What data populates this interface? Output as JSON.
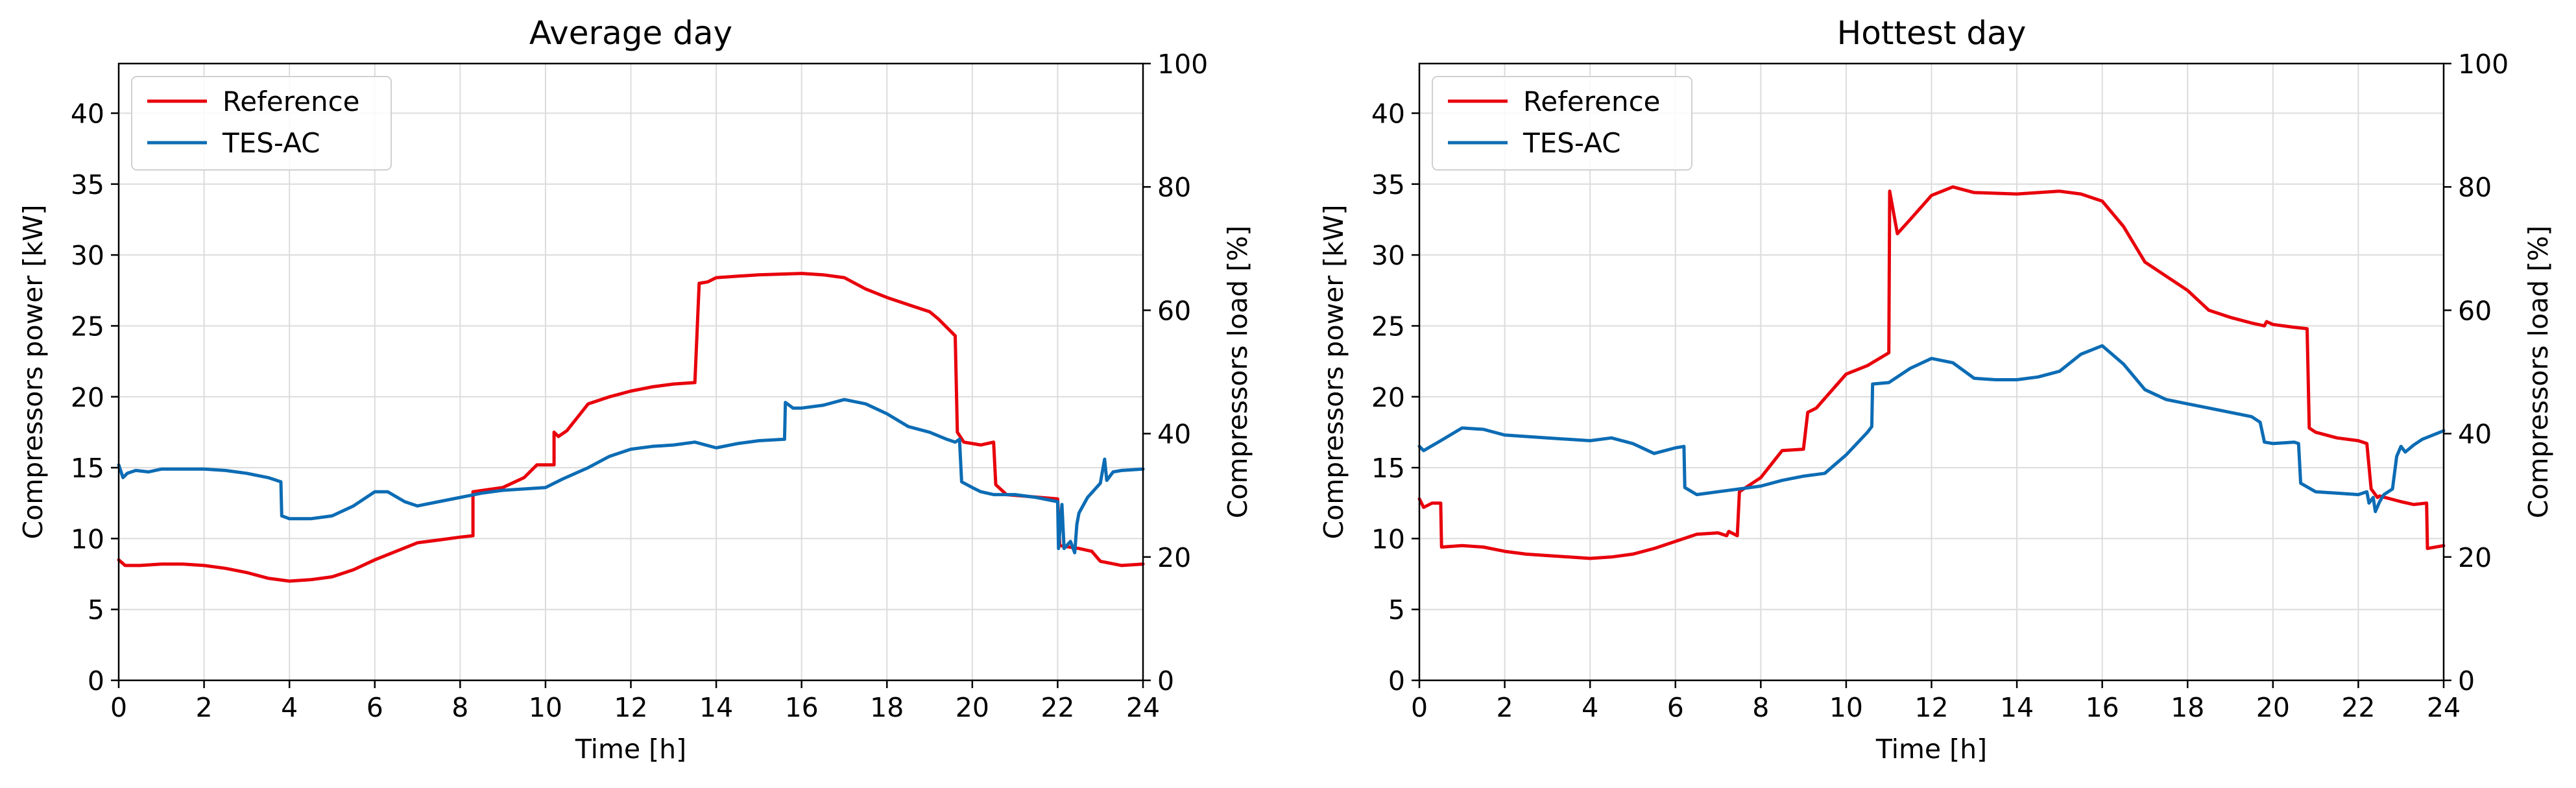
{
  "chart_data": [
    {
      "type": "line",
      "title": "Average day",
      "xlabel": "Time [h]",
      "ylabel": "Compressors power [kW]",
      "y2label": "Compressors load [%]",
      "xlim": [
        0,
        24
      ],
      "ylim": [
        0,
        43.5
      ],
      "y2lim": [
        0,
        100
      ],
      "xticks": [
        0,
        2,
        4,
        6,
        8,
        10,
        12,
        14,
        16,
        18,
        20,
        22,
        24
      ],
      "yticks": [
        0,
        5,
        10,
        15,
        20,
        25,
        30,
        35,
        40
      ],
      "y2ticks": [
        0,
        20,
        40,
        60,
        80,
        100
      ],
      "legend": "top-left",
      "grid": true,
      "series": [
        {
          "name": "Reference",
          "color": "#e8000b",
          "x": [
            0,
            0.15,
            0.5,
            1,
            1.5,
            2,
            2.5,
            3,
            3.5,
            4,
            4.5,
            5,
            5.5,
            6,
            6.5,
            7,
            7.5,
            8,
            8.3,
            8.3,
            9,
            9.5,
            9.8,
            10.2,
            10.2,
            10.3,
            10.5,
            11,
            11.5,
            12,
            12.5,
            13,
            13.5,
            13.6,
            13.8,
            14,
            15,
            16,
            16.5,
            17,
            17.5,
            18,
            18.5,
            19,
            19.2,
            19.6,
            19.65,
            19.8,
            20,
            20.2,
            20.5,
            20.55,
            20.8,
            22.0,
            22.05,
            22.5,
            22.8,
            23.0,
            23.5,
            24
          ],
          "values": [
            8.5,
            8.1,
            8.1,
            8.2,
            8.2,
            8.1,
            7.9,
            7.6,
            7.2,
            7.0,
            7.1,
            7.3,
            7.8,
            8.5,
            9.1,
            9.7,
            9.9,
            10.1,
            10.2,
            13.3,
            13.6,
            14.3,
            15.2,
            15.2,
            17.5,
            17.2,
            17.6,
            19.5,
            20.0,
            20.4,
            20.7,
            20.9,
            21.0,
            28.0,
            28.1,
            28.4,
            28.6,
            28.7,
            28.6,
            28.4,
            27.6,
            27.0,
            26.5,
            26.0,
            25.5,
            24.3,
            17.5,
            16.8,
            16.7,
            16.6,
            16.8,
            13.8,
            13.1,
            12.8,
            9.5,
            9.3,
            9.1,
            8.4,
            8.1,
            8.2
          ]
        },
        {
          "name": "TES-AC",
          "color": "#0c6cb4",
          "x": [
            0,
            0.1,
            0.2,
            0.4,
            0.7,
            1,
            1.5,
            2,
            2.5,
            3,
            3.5,
            3.8,
            3.82,
            4.0,
            4.5,
            5,
            5.5,
            6,
            6.3,
            6.7,
            7.0,
            7.5,
            8,
            8.5,
            9,
            9.5,
            10,
            10.4,
            11,
            11.5,
            12,
            12.5,
            13,
            13.5,
            14,
            14.5,
            15,
            15.6,
            15.62,
            15.8,
            16,
            16.5,
            17,
            17.5,
            18,
            18.5,
            19,
            19.4,
            19.6,
            19.7,
            19.75,
            20,
            20.2,
            20.5,
            21,
            21.5,
            22,
            22.02,
            22.1,
            22.15,
            22.3,
            22.4,
            22.45,
            22.5,
            22.7,
            23,
            23.1,
            23.15,
            23.3,
            23.5,
            24
          ],
          "values": [
            15.2,
            14.3,
            14.6,
            14.8,
            14.7,
            14.9,
            14.9,
            14.9,
            14.8,
            14.6,
            14.3,
            14.0,
            11.6,
            11.4,
            11.4,
            11.6,
            12.3,
            13.3,
            13.3,
            12.6,
            12.3,
            12.6,
            12.9,
            13.2,
            13.4,
            13.5,
            13.6,
            14.2,
            15.0,
            15.8,
            16.3,
            16.5,
            16.6,
            16.8,
            16.4,
            16.7,
            16.9,
            17.0,
            19.6,
            19.2,
            19.2,
            19.4,
            19.8,
            19.5,
            18.8,
            17.9,
            17.5,
            17.0,
            16.8,
            17.0,
            14.0,
            13.6,
            13.3,
            13.1,
            13.1,
            12.9,
            12.6,
            9.3,
            12.4,
            9.3,
            9.8,
            9.0,
            11.0,
            11.8,
            12.9,
            13.9,
            15.6,
            14.1,
            14.7,
            14.8,
            14.9
          ]
        }
      ]
    },
    {
      "type": "line",
      "title": "Hottest day",
      "xlabel": "Time [h]",
      "ylabel": "Compressors power [kW]",
      "y2label": "Compressors load [%]",
      "xlim": [
        0,
        24
      ],
      "ylim": [
        0,
        43.5
      ],
      "y2lim": [
        0,
        100
      ],
      "xticks": [
        0,
        2,
        4,
        6,
        8,
        10,
        12,
        14,
        16,
        18,
        20,
        22,
        24
      ],
      "yticks": [
        0,
        5,
        10,
        15,
        20,
        25,
        30,
        35,
        40
      ],
      "y2ticks": [
        0,
        20,
        40,
        60,
        80,
        100
      ],
      "legend": "top-left",
      "grid": true,
      "series": [
        {
          "name": "Reference",
          "color": "#e8000b",
          "x": [
            0,
            0.1,
            0.3,
            0.5,
            0.52,
            1,
            1.5,
            2,
            2.5,
            3,
            3.5,
            4,
            4.5,
            5,
            5.5,
            6,
            6.5,
            7,
            7.2,
            7.25,
            7.45,
            7.5,
            8,
            8.5,
            9,
            9.1,
            9.3,
            10,
            10.5,
            11.0,
            11.02,
            11.2,
            11.5,
            12,
            12.5,
            13,
            14,
            15,
            15.5,
            16,
            16.5,
            17,
            17.5,
            18,
            18.5,
            19,
            19.5,
            19.8,
            19.85,
            20,
            20.5,
            20.8,
            20.85,
            21,
            21.5,
            22,
            22.2,
            22.3,
            22.45,
            22.5,
            23,
            23.3,
            23.6,
            23.62,
            24
          ],
          "values": [
            12.8,
            12.2,
            12.5,
            12.5,
            9.4,
            9.5,
            9.4,
            9.1,
            8.9,
            8.8,
            8.7,
            8.6,
            8.7,
            8.9,
            9.3,
            9.8,
            10.3,
            10.4,
            10.2,
            10.5,
            10.2,
            13.3,
            14.3,
            16.2,
            16.3,
            18.9,
            19.2,
            21.6,
            22.2,
            23.1,
            34.5,
            31.5,
            32.5,
            34.2,
            34.8,
            34.4,
            34.3,
            34.5,
            34.3,
            33.8,
            32.0,
            29.5,
            28.5,
            27.5,
            26.1,
            25.6,
            25.2,
            25.0,
            25.3,
            25.1,
            24.9,
            24.8,
            17.8,
            17.5,
            17.1,
            16.9,
            16.7,
            13.5,
            12.9,
            13.0,
            12.6,
            12.4,
            12.5,
            9.3,
            9.5
          ]
        },
        {
          "name": "TES-AC",
          "color": "#0c6cb4",
          "x": [
            0,
            0.1,
            0.5,
            1,
            1.5,
            2,
            3,
            4,
            4.5,
            5,
            5.5,
            6,
            6.2,
            6.22,
            6.5,
            7,
            7.5,
            8,
            8.5,
            9,
            9.5,
            10,
            10.5,
            10.6,
            10.62,
            11,
            11.5,
            12,
            12.5,
            13,
            13.5,
            14,
            14.5,
            15,
            15.5,
            16,
            16.5,
            17,
            17.5,
            18,
            18.5,
            19,
            19.5,
            19.7,
            19.8,
            20,
            20.5,
            20.6,
            20.65,
            21,
            21.5,
            22,
            22.2,
            22.25,
            22.35,
            22.4,
            22.5,
            22.6,
            22.8,
            22.9,
            23,
            23.1,
            23.3,
            23.5,
            24
          ],
          "values": [
            16.5,
            16.2,
            16.9,
            17.8,
            17.7,
            17.3,
            17.1,
            16.9,
            17.1,
            16.7,
            16.0,
            16.4,
            16.5,
            13.6,
            13.1,
            13.3,
            13.5,
            13.7,
            14.1,
            14.4,
            14.6,
            15.9,
            17.5,
            17.9,
            20.9,
            21.0,
            22.0,
            22.7,
            22.4,
            21.3,
            21.2,
            21.2,
            21.4,
            21.8,
            23.0,
            23.6,
            22.3,
            20.5,
            19.8,
            19.5,
            19.2,
            18.9,
            18.6,
            18.2,
            16.8,
            16.7,
            16.8,
            16.7,
            13.9,
            13.3,
            13.2,
            13.1,
            13.3,
            12.5,
            12.9,
            11.9,
            12.6,
            13.1,
            13.5,
            15.8,
            16.5,
            16.1,
            16.6,
            17.0,
            17.6
          ]
        }
      ]
    }
  ]
}
